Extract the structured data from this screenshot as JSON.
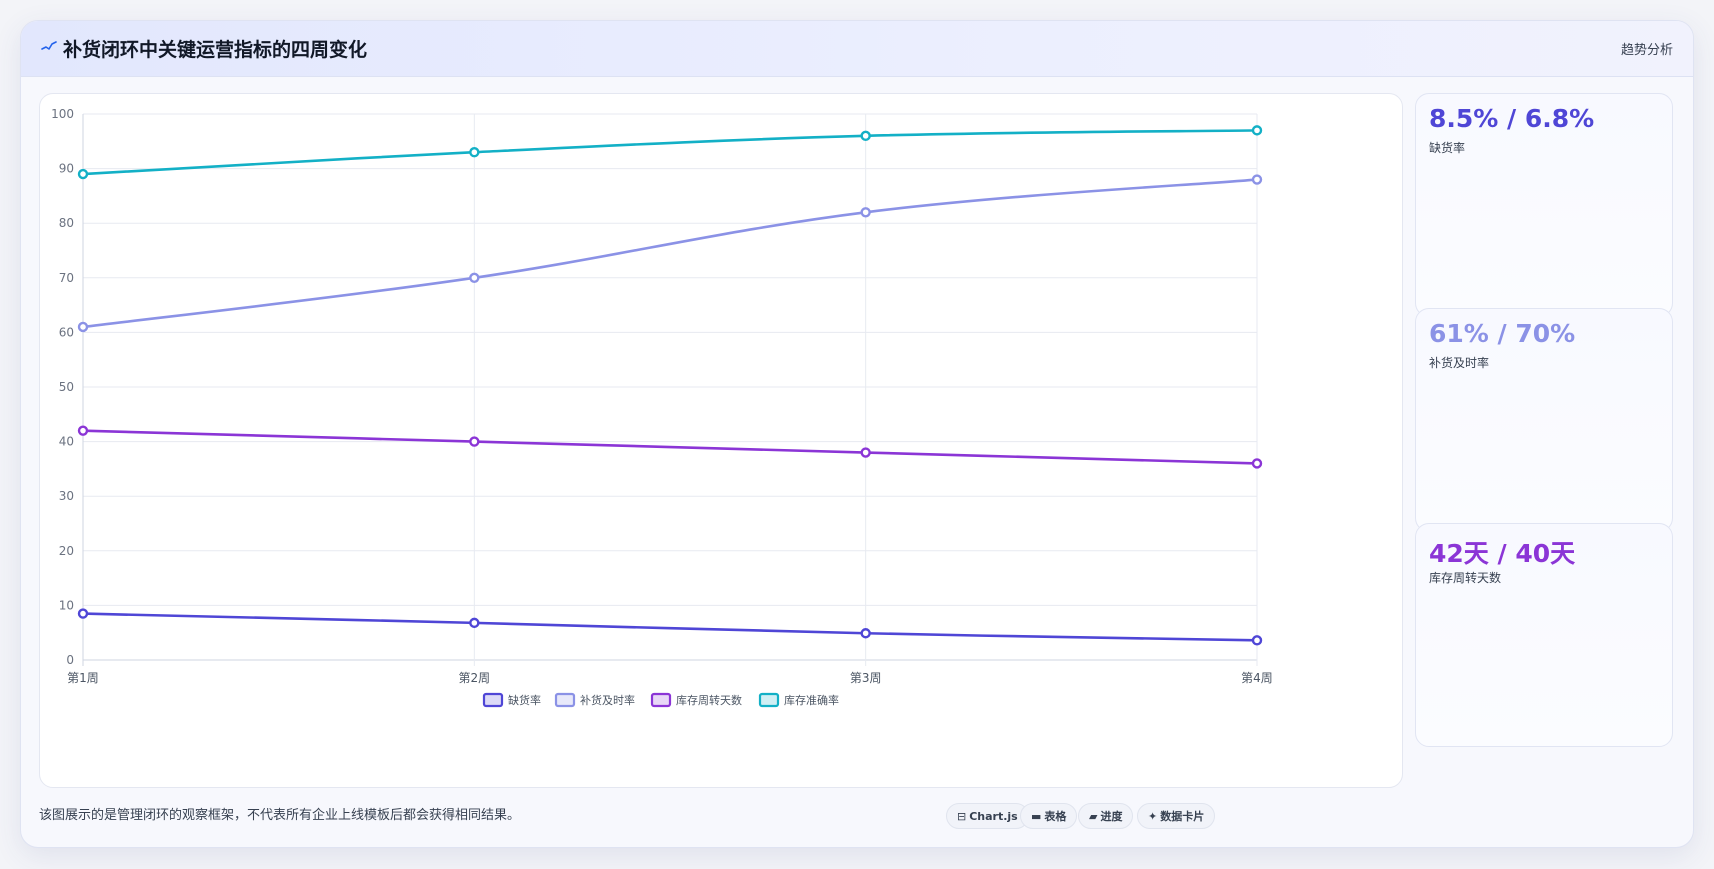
{
  "header": {
    "title": "补货闭环中关键运营指标的四周变化",
    "right_label": "趋势分析",
    "icon": "pulse-line-icon"
  },
  "chart_data": {
    "type": "line",
    "categories": [
      "第1周",
      "第2周",
      "第3周",
      "第4周"
    ],
    "y_ticks": [
      0,
      10,
      20,
      30,
      40,
      50,
      60,
      70,
      80,
      90,
      100
    ],
    "ylim": [
      0,
      100
    ],
    "grid": true,
    "legend_position": "bottom",
    "series": [
      {
        "name": "缺货率",
        "values": [
          8.5,
          6.8,
          4.9,
          3.6
        ],
        "color": "#4f46d6"
      },
      {
        "name": "补货及时率",
        "values": [
          61,
          70,
          82,
          88
        ],
        "color": "#8b92e6"
      },
      {
        "name": "库存周转天数",
        "values": [
          42,
          40,
          38,
          36
        ],
        "color": "#8b35d6"
      },
      {
        "name": "库存准确率",
        "values": [
          89,
          93,
          96,
          97
        ],
        "color": "#13b0c6"
      }
    ]
  },
  "stats": [
    {
      "value": "8.5% / 6.8%",
      "label": "缺货率",
      "color": "#4f46d6"
    },
    {
      "value": "61% / 70%",
      "label": "补货及时率",
      "color": "#8b92e6"
    },
    {
      "value": "42天 / 40天",
      "label": "库存周转天数",
      "color": "#8b35d6"
    }
  ],
  "footnote": "该图展示的是管理闭环的观察框架，不代表所有企业上线模板后都会获得相同结果。",
  "chips": [
    {
      "icon": "⊟",
      "icon_name": "chart-icon",
      "label": "Chart.js"
    },
    {
      "icon": "▬",
      "icon_name": "table-icon",
      "label": "表格"
    },
    {
      "icon": "▰",
      "icon_name": "progress-icon",
      "label": "进度"
    },
    {
      "icon": "✦",
      "icon_name": "sparkle-icon",
      "label": "数据卡片"
    }
  ]
}
